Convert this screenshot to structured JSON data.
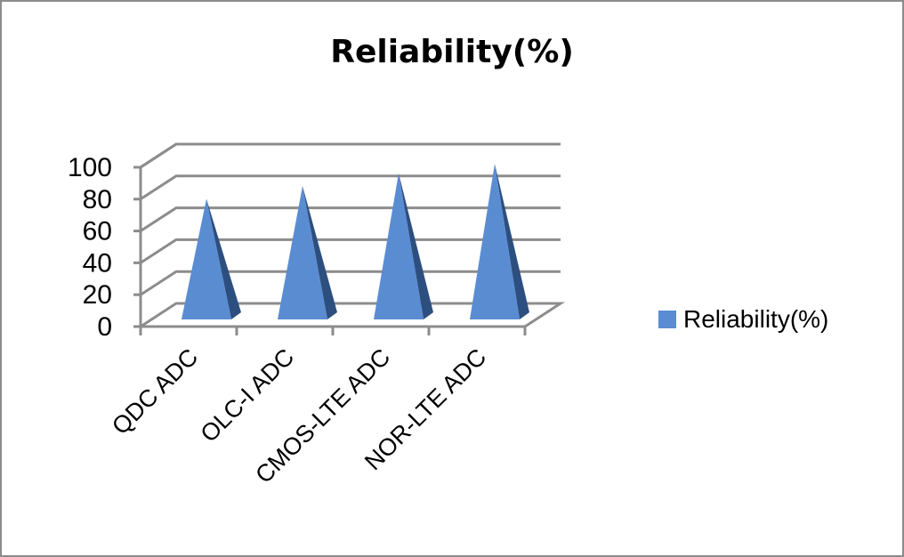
{
  "chart_data": {
    "type": "bar",
    "style": "3d-pyramid",
    "title": "Reliability(%)",
    "categories": [
      "QDC ADC",
      "OLC-I ADC",
      "CMOS-LTE ADC",
      "NOR-LTE ADC"
    ],
    "series": [
      {
        "name": "Reliability(%)",
        "values": [
          78,
          86,
          94,
          100
        ]
      }
    ],
    "ylim": [
      0,
      100
    ],
    "yticks": [
      0,
      20,
      40,
      60,
      80,
      100
    ],
    "xlabel": "",
    "ylabel": "",
    "grid": true,
    "legend_position": "right",
    "colors": {
      "bar_front": "#5a8cd2",
      "bar_side": "#2d4f7f",
      "grid": "#8c8c8c"
    }
  }
}
